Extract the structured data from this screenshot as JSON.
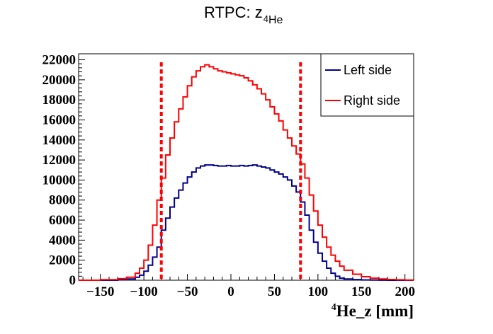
{
  "chart_data": {
    "type": "line",
    "title": {
      "main": "RTPC: z",
      "sub_super": "4",
      "sub": "He"
    },
    "xlabel": {
      "super": "4",
      "text": "He_z [mm]"
    },
    "ylabel": "",
    "xlim": [
      -175,
      210
    ],
    "ylim": [
      0,
      22600
    ],
    "x_ticks": [
      -150,
      -100,
      -50,
      0,
      50,
      100,
      150,
      200
    ],
    "y_ticks": [
      0,
      2000,
      4000,
      6000,
      8000,
      10000,
      12000,
      14000,
      16000,
      18000,
      20000,
      22000
    ],
    "x_tick_labels": [
      "−150",
      "−100",
      "−50",
      "0",
      "50",
      "100",
      "150",
      "200"
    ],
    "y_tick_labels": [
      "0",
      "2000",
      "4000",
      "6000",
      "8000",
      "10000",
      "12000",
      "14000",
      "16000",
      "18000",
      "20000",
      "22000"
    ],
    "grid": false,
    "legend_position": "top-right",
    "cut_lines": [
      -80,
      80
    ],
    "series": [
      {
        "name": "Left side",
        "color": "#00008b",
        "x": [
          -175,
          -150,
          -130,
          -120,
          -110,
          -105,
          -100,
          -95,
          -90,
          -85,
          -80,
          -75,
          -70,
          -65,
          -60,
          -55,
          -50,
          -45,
          -40,
          -35,
          -30,
          -25,
          -20,
          -15,
          -10,
          -5,
          0,
          5,
          10,
          15,
          20,
          25,
          30,
          35,
          40,
          45,
          50,
          55,
          60,
          65,
          70,
          75,
          80,
          85,
          90,
          95,
          100,
          105,
          110,
          115,
          120,
          125,
          130,
          140,
          150,
          160,
          170,
          180,
          190,
          200,
          210
        ],
        "values": [
          0,
          0,
          50,
          120,
          300,
          500,
          900,
          1500,
          2300,
          3300,
          5000,
          6200,
          7300,
          8200,
          9000,
          9700,
          10300,
          10800,
          11200,
          11400,
          11500,
          11500,
          11450,
          11400,
          11400,
          11450,
          11400,
          11400,
          11450,
          11400,
          11450,
          11500,
          11400,
          11300,
          11200,
          11000,
          10800,
          10600,
          10300,
          10000,
          9400,
          8800,
          7800,
          6500,
          5000,
          3800,
          2700,
          1900,
          1200,
          700,
          400,
          200,
          120,
          60,
          30,
          15,
          5,
          0,
          0,
          0,
          0
        ]
      },
      {
        "name": "Right side",
        "color": "#ff0000",
        "x": [
          -175,
          -150,
          -130,
          -120,
          -110,
          -105,
          -100,
          -95,
          -90,
          -85,
          -80,
          -75,
          -70,
          -65,
          -60,
          -55,
          -50,
          -45,
          -40,
          -35,
          -30,
          -25,
          -20,
          -15,
          -10,
          -5,
          0,
          5,
          10,
          15,
          20,
          25,
          30,
          35,
          40,
          45,
          50,
          55,
          60,
          65,
          70,
          75,
          80,
          85,
          90,
          95,
          100,
          105,
          110,
          115,
          120,
          125,
          130,
          140,
          150,
          160,
          170,
          180,
          190,
          200,
          210
        ],
        "values": [
          0,
          50,
          150,
          300,
          700,
          1200,
          2000,
          3500,
          5500,
          8000,
          10200,
          12500,
          14200,
          15800,
          17100,
          18300,
          19400,
          20300,
          20900,
          21300,
          21500,
          21300,
          21100,
          20900,
          20800,
          20700,
          20600,
          20500,
          20400,
          20200,
          19900,
          19500,
          19100,
          18600,
          18000,
          17300,
          16600,
          15900,
          15000,
          14200,
          13400,
          12600,
          11600,
          10200,
          8500,
          6900,
          5500,
          4300,
          3300,
          2500,
          1900,
          1400,
          1000,
          600,
          350,
          200,
          120,
          70,
          40,
          20,
          10
        ]
      }
    ]
  }
}
